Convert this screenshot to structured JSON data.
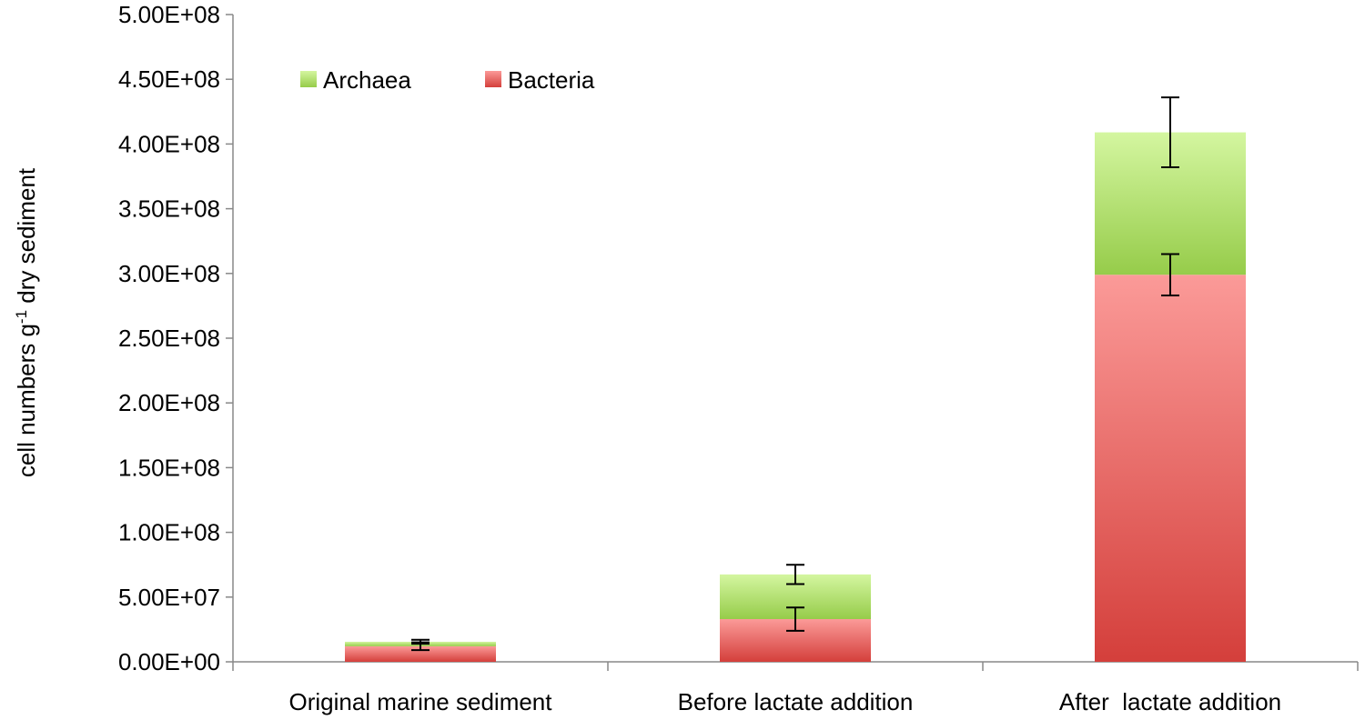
{
  "chart_data": {
    "type": "bar",
    "stacked": true,
    "title": "",
    "xlabel": "",
    "ylabel": {
      "prefix": "cell numbers g",
      "superscript": "-1",
      "suffix": " dry sediment"
    },
    "categories": [
      "Original marine sediment",
      "Before lactate addition",
      "After  lactate addition"
    ],
    "ylim": [
      0,
      500000000
    ],
    "yticks": [
      0,
      50000000,
      100000000,
      150000000,
      200000000,
      250000000,
      300000000,
      350000000,
      400000000,
      450000000,
      500000000
    ],
    "ytick_labels": [
      "0.00E+00",
      "5.00E+07",
      "1.00E+08",
      "1.50E+08",
      "2.00E+08",
      "2.50E+08",
      "3.00E+08",
      "3.50E+08",
      "4.00E+08",
      "4.50E+08",
      "5.00E+08"
    ],
    "series": [
      {
        "name": "Bacteria",
        "values": [
          12000000,
          33000000,
          299000000
        ],
        "error": [
          3000000,
          9000000,
          16000000
        ],
        "color_top": "#fb9a98",
        "color_bottom": "#d43f3b"
      },
      {
        "name": "Archaea",
        "values": [
          3500000,
          34500000,
          110000000
        ],
        "error": [
          1500000,
          7500000,
          27000000
        ],
        "color_top": "#d4f6a0",
        "color_bottom": "#96cc4a"
      }
    ],
    "legend": {
      "position": "top-left",
      "order": [
        "Archaea",
        "Bacteria"
      ]
    },
    "grid": false
  }
}
